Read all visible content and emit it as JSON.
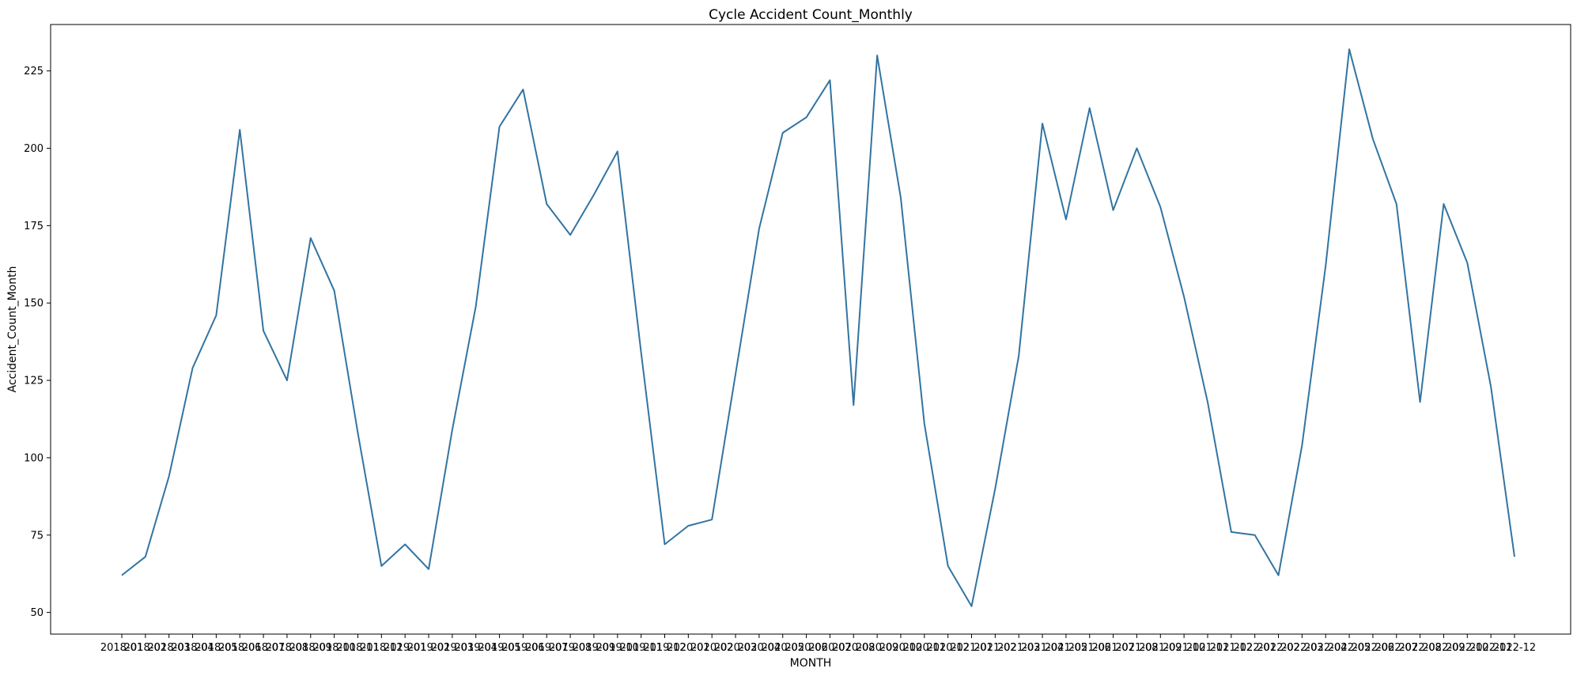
{
  "chart_data": {
    "type": "line",
    "title": "Cycle Accident Count_Monthly",
    "xlabel": "MONTH",
    "ylabel": "Accident_Count_Month",
    "ylim": [
      43,
      240
    ],
    "yticks": [
      50,
      75,
      100,
      125,
      150,
      175,
      200,
      225
    ],
    "grid": false,
    "line_color": "#3274a1",
    "x": [
      "2018-01",
      "2018-02",
      "2018-03",
      "2018-04",
      "2018-05",
      "2018-06",
      "2018-07",
      "2018-08",
      "2018-09",
      "2018-10",
      "2018-11",
      "2018-12",
      "2019-01",
      "2019-02",
      "2019-03",
      "2019-04",
      "2019-05",
      "2019-06",
      "2019-07",
      "2019-08",
      "2019-09",
      "2019-10",
      "2019-11",
      "2019-12",
      "2020-01",
      "2020-02",
      "2020-03",
      "2020-04",
      "2020-05",
      "2020-06",
      "2020-07",
      "2020-08",
      "2020-09",
      "2020-10",
      "2020-11",
      "2020-12",
      "2021-01",
      "2021-02",
      "2021-03",
      "2021-04",
      "2021-05",
      "2021-06",
      "2021-07",
      "2021-08",
      "2021-09",
      "2021-10",
      "2021-11",
      "2021-12",
      "2022-01",
      "2022-02",
      "2022-03",
      "2022-04",
      "2022-05",
      "2022-06",
      "2022-07",
      "2022-08",
      "2022-09",
      "2022-10",
      "2022-11",
      "2022-12"
    ],
    "values": [
      62,
      68,
      94,
      129,
      146,
      206,
      141,
      125,
      171,
      154,
      108,
      65,
      72,
      64,
      109,
      149,
      207,
      219,
      182,
      172,
      185,
      199,
      134,
      72,
      78,
      80,
      127,
      174,
      205,
      210,
      222,
      117,
      230,
      184,
      111,
      65,
      52,
      90,
      133,
      208,
      177,
      213,
      180,
      200,
      181,
      152,
      118,
      76,
      75,
      62,
      104,
      162,
      232,
      203,
      182,
      118,
      182,
      163,
      123,
      68
    ]
  }
}
